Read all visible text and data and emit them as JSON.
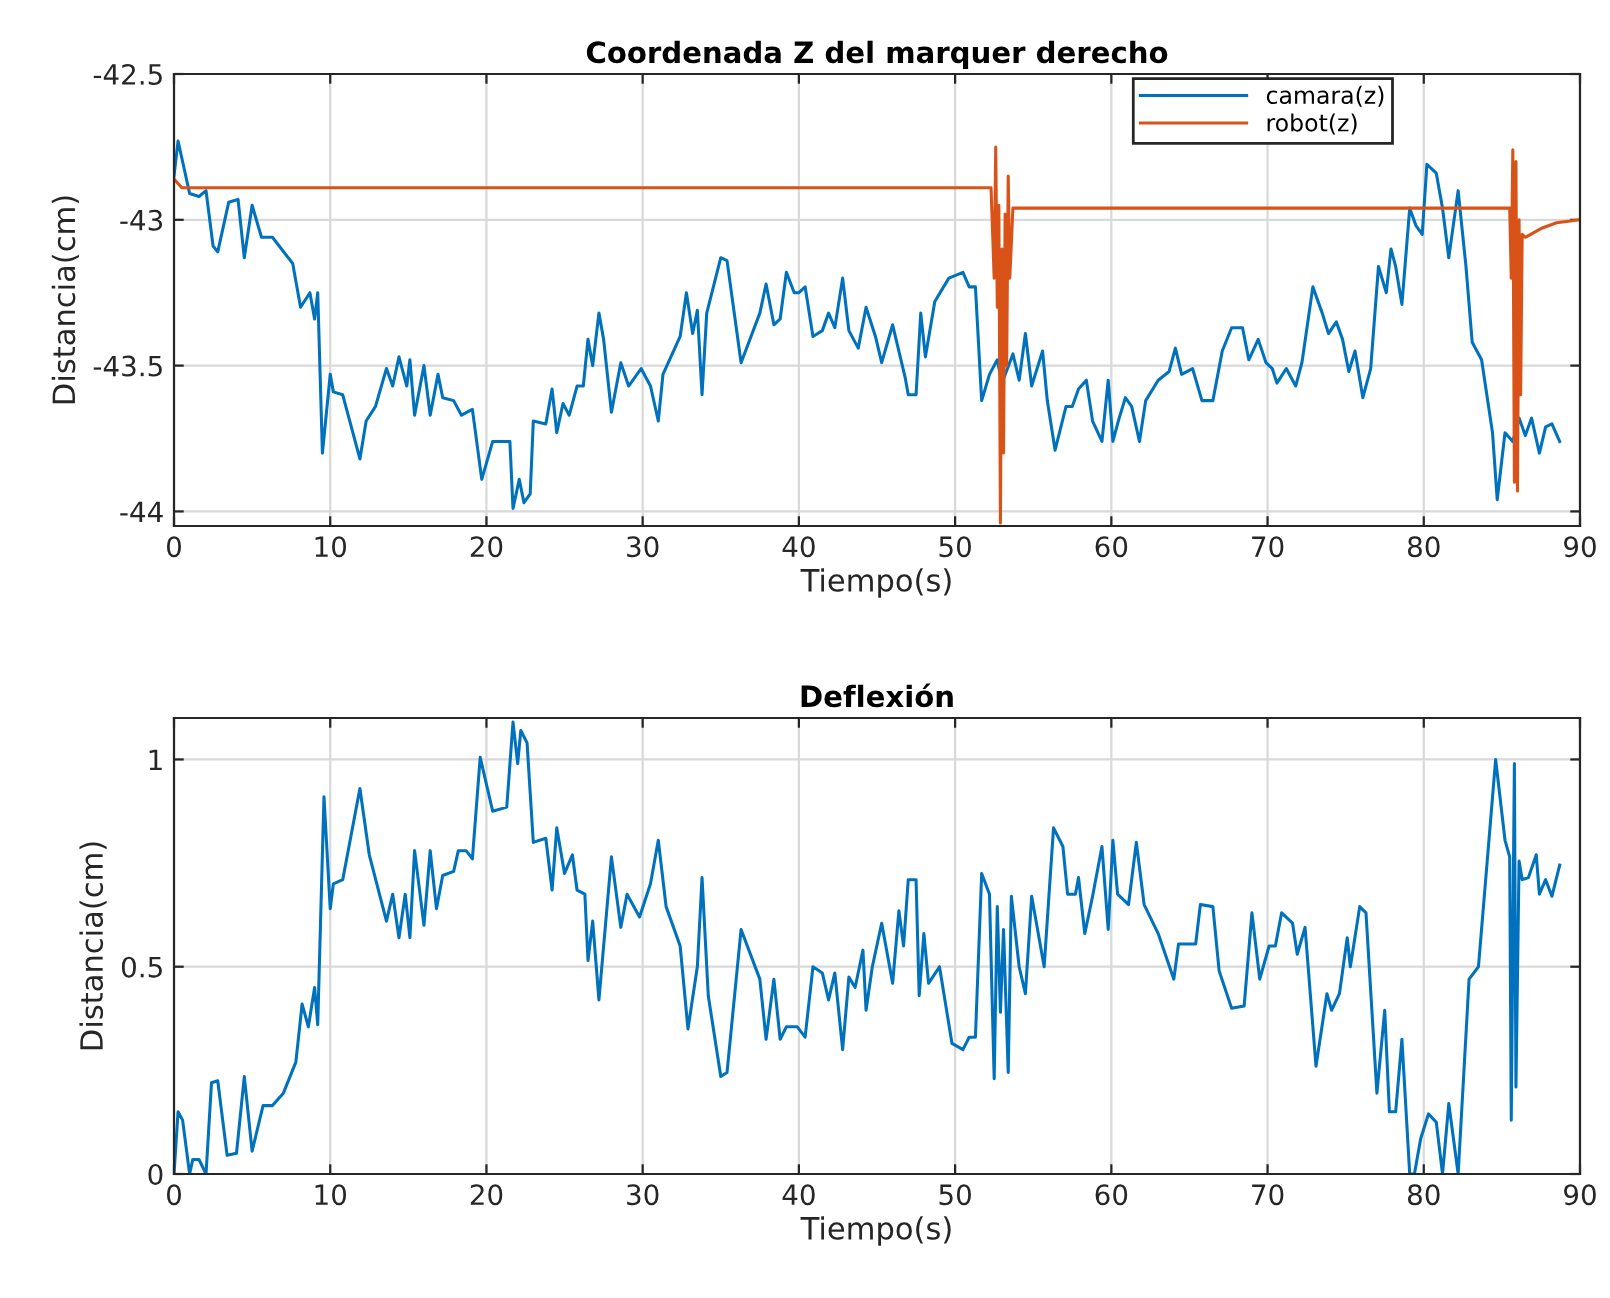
{
  "chart_data": [
    {
      "type": "line",
      "title": "Coordenada Z del marquer derecho",
      "xlabel": "Tiempo(s)",
      "ylabel": "Distancia(cm)",
      "xlim": [
        0,
        90
      ],
      "xticks": [
        0,
        10,
        20,
        30,
        40,
        50,
        60,
        70,
        80,
        90
      ],
      "ylim": [
        -44.05,
        -42.5
      ],
      "yticks": [
        -44,
        -43.5,
        -43,
        -42.5
      ],
      "grid": true,
      "legend": "top right",
      "series": [
        {
          "name": "camara(z)",
          "color": "#0072bd",
          "x": [
            0,
            0.26,
            0.55,
            1.0,
            1.6,
            2.05,
            2.5,
            2.8,
            3.5,
            4.1,
            4.5,
            5.0,
            5.6,
            6.3,
            7.6,
            8.1,
            8.7,
            9.0,
            9.2,
            9.5,
            10.0,
            10.2,
            10.8,
            11.9,
            12.3,
            12.9,
            13.6,
            14.0,
            14.4,
            14.9,
            15.1,
            15.4,
            16.0,
            16.4,
            16.9,
            17.2,
            17.9,
            18.4,
            19.1,
            19.7,
            20.4,
            21.5,
            21.7,
            22.1,
            22.4,
            22.8,
            23.0,
            23.8,
            24.2,
            24.5,
            24.9,
            25.3,
            25.8,
            26.2,
            26.5,
            26.8,
            27.2,
            27.5,
            28.0,
            28.6,
            29.1,
            29.9,
            30.5,
            31.0,
            31.3,
            32.4,
            32.8,
            33.2,
            33.5,
            33.8,
            34.1,
            35.0,
            35.4,
            36.3,
            37.5,
            37.9,
            38.4,
            38.8,
            39.2,
            39.7,
            40.0,
            40.4,
            40.9,
            41.5,
            41.9,
            42.3,
            42.8,
            43.2,
            43.8,
            44.3,
            44.9,
            45.3,
            46.0,
            46.4,
            46.8,
            47.0,
            47.5,
            47.8,
            48.1,
            48.7,
            49.6,
            50.5,
            50.9,
            51.3,
            51.7,
            52.2,
            52.7,
            53.0,
            53.7,
            54.1,
            54.5,
            54.9,
            55.6,
            55.9,
            56.4,
            57.1,
            57.5,
            57.9,
            58.4,
            58.8,
            59.4,
            59.8,
            60.1,
            60.5,
            60.9,
            61.3,
            61.8,
            62.2,
            63.0,
            63.7,
            64.1,
            64.5,
            65.2,
            65.8,
            66.5,
            67.1,
            67.7,
            68.4,
            68.8,
            69.4,
            69.9,
            70.3,
            70.6,
            71.2,
            71.8,
            72.2,
            72.9,
            73.5,
            73.9,
            74.4,
            74.8,
            75.2,
            75.6,
            76.1,
            76.6,
            77.1,
            77.6,
            77.9,
            78.2,
            78.6,
            79.1,
            79.5,
            79.9,
            80.2,
            80.8,
            81.2,
            81.6,
            82.2,
            82.7,
            83.1,
            83.7,
            84.4,
            84.7,
            85.2,
            85.7,
            86.1,
            86.5,
            86.9,
            87.4,
            87.8,
            88.2,
            88.7
          ],
          "values": [
            -42.85,
            -42.73,
            -42.8,
            -42.91,
            -42.92,
            -42.9,
            -43.09,
            -43.11,
            -42.94,
            -42.93,
            -43.13,
            -42.95,
            -43.06,
            -43.06,
            -43.15,
            -43.3,
            -43.25,
            -43.34,
            -43.25,
            -43.8,
            -43.53,
            -43.59,
            -43.6,
            -43.82,
            -43.69,
            -43.64,
            -43.51,
            -43.57,
            -43.47,
            -43.57,
            -43.48,
            -43.67,
            -43.5,
            -43.67,
            -43.53,
            -43.61,
            -43.62,
            -43.67,
            -43.65,
            -43.89,
            -43.76,
            -43.76,
            -43.99,
            -43.89,
            -43.97,
            -43.94,
            -43.69,
            -43.7,
            -43.58,
            -43.73,
            -43.63,
            -43.67,
            -43.57,
            -43.57,
            -43.41,
            -43.5,
            -43.32,
            -43.41,
            -43.66,
            -43.49,
            -43.57,
            -43.51,
            -43.57,
            -43.69,
            -43.53,
            -43.4,
            -43.25,
            -43.39,
            -43.31,
            -43.6,
            -43.32,
            -43.13,
            -43.14,
            -43.49,
            -43.32,
            -43.22,
            -43.36,
            -43.34,
            -43.18,
            -43.25,
            -43.25,
            -43.23,
            -43.4,
            -43.38,
            -43.32,
            -43.37,
            -43.2,
            -43.38,
            -43.44,
            -43.3,
            -43.4,
            -43.49,
            -43.36,
            -43.45,
            -43.54,
            -43.6,
            -43.6,
            -43.32,
            -43.47,
            -43.28,
            -43.2,
            -43.18,
            -43.23,
            -43.23,
            -43.62,
            -43.53,
            -43.48,
            -43.56,
            -43.46,
            -43.55,
            -43.39,
            -43.57,
            -43.45,
            -43.62,
            -43.79,
            -43.64,
            -43.64,
            -43.58,
            -43.55,
            -43.69,
            -43.76,
            -43.55,
            -43.76,
            -43.68,
            -43.61,
            -43.64,
            -43.76,
            -43.62,
            -43.55,
            -43.52,
            -43.44,
            -43.53,
            -43.51,
            -43.62,
            -43.62,
            -43.45,
            -43.37,
            -43.37,
            -43.48,
            -43.41,
            -43.49,
            -43.51,
            -43.56,
            -43.51,
            -43.57,
            -43.49,
            -43.23,
            -43.32,
            -43.39,
            -43.35,
            -43.41,
            -43.52,
            -43.45,
            -43.61,
            -43.51,
            -43.16,
            -43.25,
            -43.1,
            -43.16,
            -43.29,
            -42.96,
            -43.02,
            -43.05,
            -42.81,
            -42.84,
            -42.96,
            -43.13,
            -42.9,
            -43.16,
            -43.42,
            -43.48,
            -43.73,
            -43.96,
            -43.73,
            -43.76,
            -43.68,
            -43.74,
            -43.68,
            -43.8,
            -43.71,
            -43.7,
            -43.76
          ]
        },
        {
          "name": "robot(z)",
          "color": "#d95319",
          "x": [
            0,
            0.5,
            52.3,
            52.5,
            52.6,
            52.7,
            52.8,
            52.9,
            53.0,
            53.1,
            53.2,
            53.3,
            53.4,
            53.5,
            53.7,
            85.5,
            85.6,
            85.7,
            85.8,
            85.9,
            86.0,
            86.1,
            86.2,
            86.3,
            86.5,
            87.5,
            88.5,
            90
          ],
          "values": [
            -42.86,
            -42.89,
            -42.89,
            -43.2,
            -42.75,
            -43.3,
            -42.95,
            -44.04,
            -43.1,
            -43.8,
            -42.98,
            -43.5,
            -42.85,
            -43.2,
            -42.96,
            -42.96,
            -43.2,
            -42.76,
            -43.9,
            -42.8,
            -43.93,
            -43.0,
            -43.6,
            -43.05,
            -43.06,
            -43.03,
            -43.01,
            -43.0
          ]
        }
      ]
    },
    {
      "type": "line",
      "title": "Deflexión",
      "xlabel": "Tiempo(s)",
      "ylabel": "Distancia(cm)",
      "xlim": [
        0,
        90
      ],
      "xticks": [
        0,
        10,
        20,
        30,
        40,
        50,
        60,
        70,
        80,
        90
      ],
      "ylim": [
        0,
        1.1
      ],
      "yticks": [
        0,
        0.5,
        1
      ],
      "grid": true,
      "series": [
        {
          "color": "#0072bd",
          "x": [
            0,
            0.26,
            0.55,
            1.0,
            1.2,
            1.6,
            2.05,
            2.4,
            2.8,
            3.4,
            4.0,
            4.5,
            5.0,
            5.7,
            6.3,
            7.0,
            7.8,
            8.2,
            8.6,
            9.0,
            9.2,
            9.6,
            10.0,
            10.2,
            10.8,
            11.9,
            12.5,
            13.6,
            14.0,
            14.4,
            14.8,
            15.1,
            15.4,
            16.0,
            16.4,
            16.8,
            17.2,
            17.9,
            18.2,
            18.7,
            19.1,
            19.6,
            20.4,
            21.3,
            21.7,
            22.0,
            22.2,
            22.6,
            23.0,
            23.8,
            24.2,
            24.5,
            25.0,
            25.5,
            25.8,
            26.3,
            26.5,
            26.8,
            27.2,
            28.0,
            28.6,
            29.0,
            29.8,
            30.5,
            31.0,
            31.5,
            32.4,
            32.9,
            33.5,
            33.8,
            34.2,
            35.0,
            35.4,
            36.3,
            37.5,
            37.9,
            38.4,
            38.8,
            39.2,
            39.9,
            40.4,
            40.9,
            41.5,
            41.9,
            42.3,
            42.8,
            43.2,
            43.6,
            44.1,
            44.3,
            44.7,
            45.3,
            46.0,
            46.4,
            46.7,
            47.0,
            47.5,
            47.7,
            48.0,
            48.3,
            49.0,
            49.8,
            50.5,
            50.9,
            51.3,
            51.7,
            52.2,
            52.5,
            52.7,
            52.9,
            53.1,
            53.4,
            53.6,
            54.1,
            54.5,
            54.9,
            55.7,
            56.3,
            56.9,
            57.2,
            57.7,
            57.9,
            58.3,
            58.8,
            59.4,
            59.8,
            60.1,
            60.4,
            61.1,
            61.6,
            62.1,
            63.0,
            64.0,
            64.3,
            65.4,
            65.7,
            66.5,
            66.9,
            67.7,
            68.5,
            69.0,
            69.5,
            70.1,
            70.5,
            70.9,
            71.6,
            71.9,
            72.4,
            73.1,
            73.8,
            74.1,
            74.6,
            75.1,
            75.3,
            75.9,
            76.3,
            77.0,
            77.5,
            77.8,
            78.2,
            78.6,
            79.1,
            79.4,
            79.8,
            80.3,
            80.8,
            81.2,
            81.6,
            82.2,
            82.9,
            83.5,
            84.6,
            85.2,
            85.5,
            85.6,
            85.8,
            85.9,
            86.1,
            86.3,
            86.7,
            87.2,
            87.4,
            87.8,
            88.2,
            88.7
          ],
          "values": [
            0,
            0.15,
            0.13,
            0,
            0.035,
            0.035,
            0,
            0.22,
            0.225,
            0.045,
            0.05,
            0.235,
            0.055,
            0.165,
            0.165,
            0.195,
            0.27,
            0.41,
            0.355,
            0.45,
            0.36,
            0.91,
            0.64,
            0.7,
            0.71,
            0.93,
            0.77,
            0.61,
            0.675,
            0.57,
            0.675,
            0.57,
            0.78,
            0.6,
            0.78,
            0.64,
            0.72,
            0.73,
            0.78,
            0.78,
            0.76,
            1.005,
            0.875,
            0.885,
            1.09,
            0.99,
            1.07,
            1.04,
            0.8,
            0.81,
            0.685,
            0.835,
            0.725,
            0.77,
            0.685,
            0.675,
            0.515,
            0.61,
            0.42,
            0.765,
            0.595,
            0.675,
            0.62,
            0.7,
            0.805,
            0.645,
            0.55,
            0.35,
            0.5,
            0.715,
            0.43,
            0.235,
            0.245,
            0.59,
            0.47,
            0.325,
            0.47,
            0.325,
            0.355,
            0.355,
            0.33,
            0.5,
            0.485,
            0.42,
            0.485,
            0.3,
            0.475,
            0.45,
            0.54,
            0.395,
            0.5,
            0.605,
            0.46,
            0.635,
            0.55,
            0.71,
            0.71,
            0.43,
            0.58,
            0.46,
            0.5,
            0.315,
            0.3,
            0.33,
            0.33,
            0.725,
            0.675,
            0.23,
            0.645,
            0.39,
            0.59,
            0.245,
            0.67,
            0.5,
            0.435,
            0.67,
            0.5,
            0.835,
            0.79,
            0.675,
            0.675,
            0.715,
            0.58,
            0.67,
            0.79,
            0.59,
            0.805,
            0.675,
            0.65,
            0.8,
            0.65,
            0.58,
            0.47,
            0.555,
            0.555,
            0.65,
            0.645,
            0.49,
            0.4,
            0.405,
            0.63,
            0.47,
            0.55,
            0.55,
            0.63,
            0.605,
            0.53,
            0.595,
            0.26,
            0.435,
            0.395,
            0.435,
            0.57,
            0.5,
            0.645,
            0.63,
            0.195,
            0.395,
            0.15,
            0.15,
            0.325,
            0,
            0,
            0.085,
            0.145,
            0.125,
            0,
            0.17,
            0,
            0.47,
            0.5,
            1.0,
            0.805,
            0.765,
            0.13,
            0.99,
            0.21,
            0.755,
            0.71,
            0.715,
            0.77,
            0.675,
            0.71,
            0.67,
            0.745
          ]
        }
      ]
    }
  ]
}
